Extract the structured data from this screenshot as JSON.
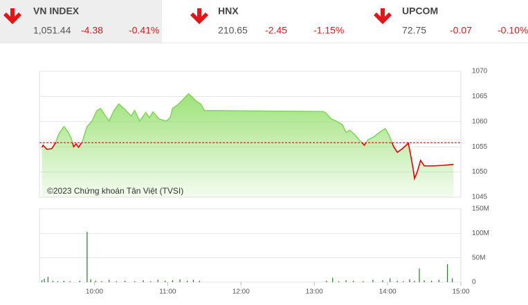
{
  "header": {
    "indices": [
      {
        "name": "VN INDEX",
        "value": "1,051.44",
        "change": "-4.38",
        "percent": "-0.41%"
      },
      {
        "name": "HNX",
        "value": "210.65",
        "change": "-2.45",
        "percent": "-1.15%"
      },
      {
        "name": "UPCOM",
        "value": "72.75",
        "change": "-0.07",
        "percent": "-0.10%"
      }
    ]
  },
  "chart_data": [
    {
      "type": "line",
      "annotation": "©2023 Chứng khoán Tân Việt (TVSI)",
      "x": [
        557,
        558,
        561,
        565,
        568,
        571,
        575,
        578,
        581,
        583,
        585,
        587,
        590,
        594,
        598,
        602,
        605,
        608,
        612,
        616,
        620,
        625,
        630,
        633,
        637,
        642,
        645,
        648,
        653,
        659,
        662,
        664,
        669,
        673,
        677,
        680,
        683,
        687,
        690,
        787,
        789,
        794,
        798,
        803,
        806,
        809,
        813,
        817,
        821,
        824,
        829,
        833,
        838,
        841,
        845,
        848,
        852,
        857,
        859,
        861,
        862,
        864,
        867,
        870,
        877,
        885,
        894
      ],
      "values": [
        1054.9,
        1055.3,
        1054.5,
        1054.6,
        1055.7,
        1057.6,
        1059.0,
        1058.1,
        1056.7,
        1055.0,
        1055.6,
        1054.9,
        1056.0,
        1059.0,
        1060.1,
        1062.2,
        1062.6,
        1061.5,
        1060.1,
        1062.2,
        1063.5,
        1062.4,
        1061.1,
        1062.2,
        1060.1,
        1061.8,
        1060.8,
        1061.9,
        1060.5,
        1060.1,
        1060.8,
        1062.6,
        1063.5,
        1064.5,
        1065.5,
        1064.9,
        1064.1,
        1063.5,
        1062.2,
        1062.0,
        1061.8,
        1060.5,
        1060.1,
        1059.4,
        1057.8,
        1058.3,
        1057.4,
        1056.3,
        1055.3,
        1056.4,
        1057.0,
        1057.8,
        1058.6,
        1057.4,
        1055.0,
        1053.9,
        1054.6,
        1055.7,
        1053.2,
        1050.5,
        1048.7,
        1049.8,
        1052.3,
        1051.2,
        1051.2,
        1051.3,
        1051.5
      ],
      "reference": 1055.82,
      "color_up": "#86d35f",
      "color_down": "#e00000",
      "reference_color": "#c00000",
      "fill_color": "#9ee27a",
      "xlim": [
        555,
        900
      ],
      "ylim": [
        1045,
        1070
      ],
      "yticks": [
        1045,
        1050,
        1055,
        1060,
        1065,
        1070
      ],
      "grid": true
    },
    {
      "type": "bar",
      "color": "#1e7b1e",
      "x": [
        557,
        559,
        562,
        566,
        570,
        575,
        580,
        588,
        594,
        597,
        601,
        606,
        612,
        618,
        625,
        633,
        640,
        646,
        652,
        658,
        664,
        670,
        676,
        681,
        686,
        790,
        795,
        800,
        806,
        812,
        820,
        828,
        836,
        842,
        848,
        853,
        858,
        862,
        866,
        870,
        876,
        882,
        889,
        893
      ],
      "values": [
        4000000,
        7000000,
        11000000,
        3000000,
        2000000,
        3000000,
        2000000,
        3000000,
        103000000,
        6000000,
        3000000,
        2000000,
        5000000,
        2000000,
        3000000,
        2000000,
        4000000,
        2000000,
        5000000,
        3000000,
        4000000,
        6000000,
        3000000,
        5000000,
        3000000,
        3000000,
        9000000,
        2000000,
        4000000,
        3000000,
        2000000,
        5000000,
        4000000,
        8000000,
        3000000,
        2000000,
        6000000,
        3000000,
        28000000,
        4000000,
        3000000,
        5000000,
        37000000,
        8000000
      ],
      "xlim": [
        555,
        900
      ],
      "ylim": [
        0,
        150000000
      ],
      "yticks": [
        0,
        {
          "value": 50000000,
          "label": "50M"
        },
        {
          "value": 100000000,
          "label": "100M"
        },
        {
          "value": 150000000,
          "label": "150M"
        }
      ],
      "xticks": [
        {
          "value": 600,
          "label": "10:00"
        },
        {
          "value": 660,
          "label": "11:00"
        },
        {
          "value": 720,
          "label": "12:00"
        },
        {
          "value": 780,
          "label": "13:00"
        },
        {
          "value": 840,
          "label": "14:00"
        },
        {
          "value": 900,
          "label": "15:00"
        }
      ]
    }
  ]
}
